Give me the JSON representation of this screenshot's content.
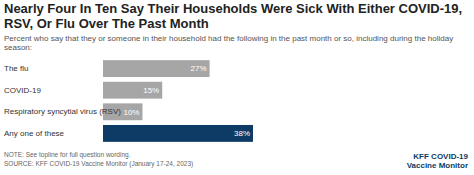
{
  "chart_data": {
    "type": "bar",
    "orientation": "horizontal",
    "title": "Nearly Four In Ten Say Their Households Were Sick With Either COVID-19, RSV, Or Flu Over The Past Month",
    "subtitle": "Percent who say that they or someone in their household had the following in the past month or so, including during the holiday season:",
    "categories": [
      "The flu",
      "COVID-19",
      "Respiratory syncytial virus (RSV)",
      "Any one of these"
    ],
    "values": [
      27,
      15,
      10,
      38
    ],
    "value_labels": [
      "27%",
      "15%",
      "10%",
      "38%"
    ],
    "colors": [
      "#a6a6a6",
      "#a6a6a6",
      "#a6a6a6",
      "#0d3b66"
    ],
    "data_labels": true,
    "tick_labels": "y",
    "grid": false,
    "notes": [
      "NOTE: See topline for full question wording.",
      "SOURCE: KFF COVID-19 Vaccine Monitor (January 17-24, 2023)"
    ],
    "logo": [
      "KFF COVID-19",
      "Vaccine Monitor"
    ]
  }
}
